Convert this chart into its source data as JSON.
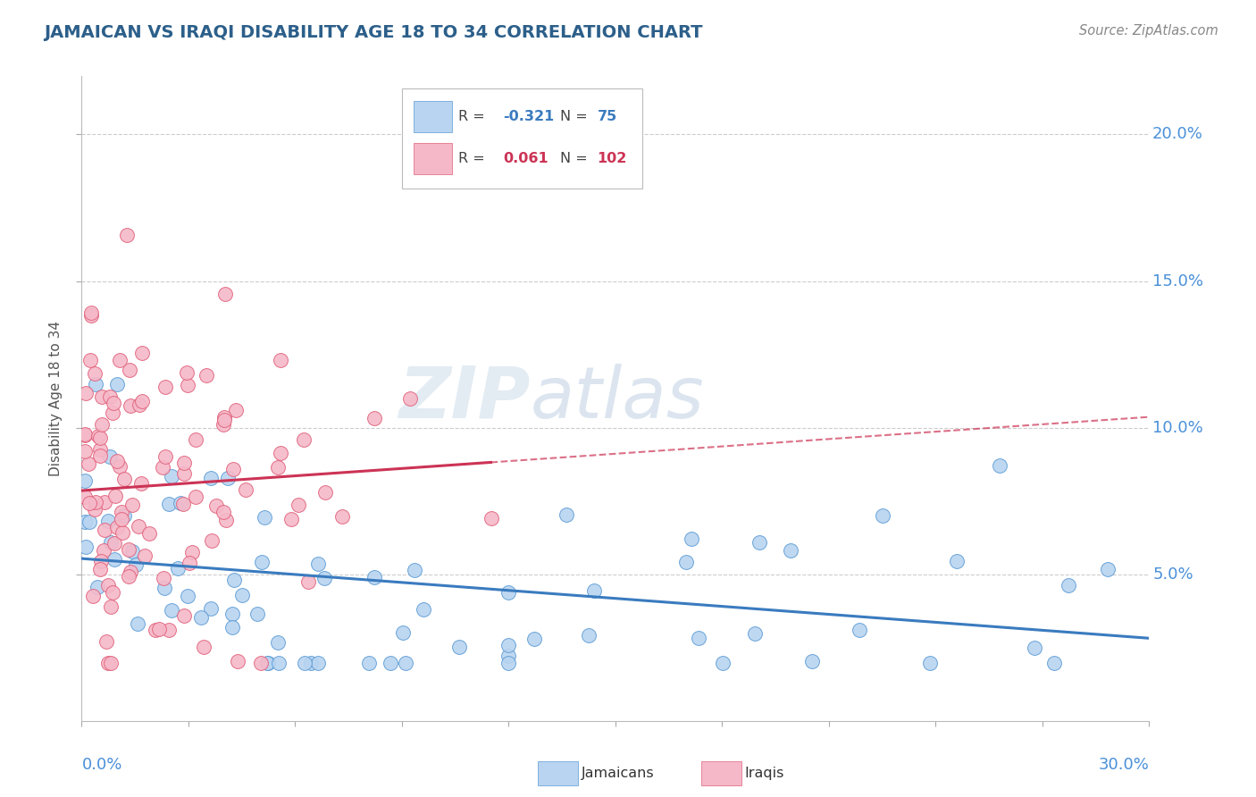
{
  "title": "JAMAICAN VS IRAQI DISABILITY AGE 18 TO 34 CORRELATION CHART",
  "source": "Source: ZipAtlas.com",
  "ylabel": "Disability Age 18 to 34",
  "xmin": 0.0,
  "xmax": 0.3,
  "ymin": 0.0,
  "ymax": 0.22,
  "yticks": [
    0.05,
    0.1,
    0.15,
    0.2
  ],
  "ytick_labels": [
    "5.0%",
    "10.0%",
    "15.0%",
    "20.0%"
  ],
  "watermark_zip": "ZIP",
  "watermark_atlas": "atlas",
  "blue_fill": "#b8d4f0",
  "blue_edge": "#5b9bd5",
  "pink_fill": "#f5b8c8",
  "pink_edge": "#e0607a",
  "blue_line": "#3a7bbf",
  "pink_line": "#cc3355",
  "title_color": "#2c5f8a",
  "source_color": "#888888",
  "tick_color": "#4a90d9",
  "grid_color": "#cccccc"
}
